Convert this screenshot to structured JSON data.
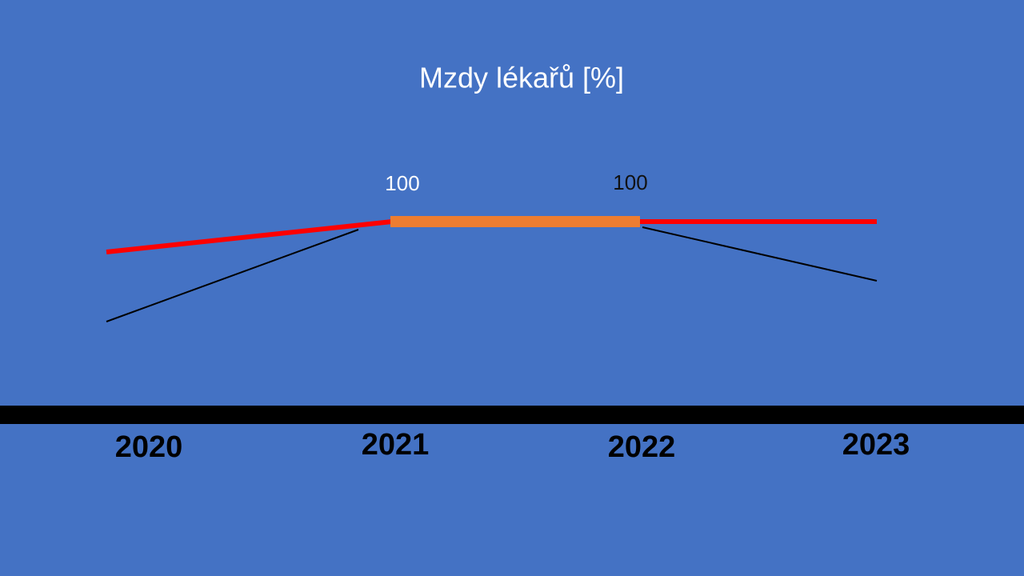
{
  "title": "Mzdy lékařů [%]",
  "labels": [
    "100",
    "100"
  ],
  "years": [
    "2020",
    "2021",
    "2022",
    "2023"
  ]
}
